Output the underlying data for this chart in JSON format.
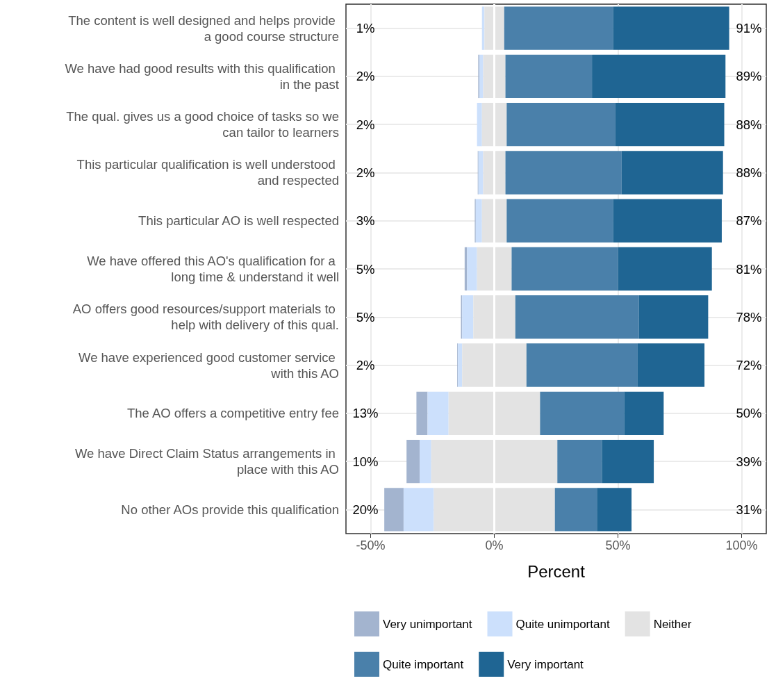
{
  "chart_data": {
    "type": "bar",
    "orientation": "horizontal",
    "xlabel": "Percent",
    "categories": [
      "The content is well designed and helps provide a good course structure",
      "We have had good results with this qualification in the past",
      "The qual. gives us a good choice of tasks so we can tailor to learners",
      "This particular qualification is well understood and respected",
      "This particular AO is well respected",
      "We have offered this AO's qualification for a long time & understand it well",
      "AO offers good resources/support materials to help with delivery of this qual.",
      "We have experienced good customer service with this AO",
      "The AO offers a competitive entry fee",
      "We have Direct Claim Status arrangements in place with this AO",
      "No other AOs provide this qualification"
    ],
    "series": [
      {
        "name": "Very unimportant",
        "color": "#a3b4cf",
        "values": [
          null,
          0.5,
          null,
          0.3,
          0.4,
          1,
          0.5,
          0.3,
          4.5,
          5.3,
          7.8
        ],
        "base": [
          null,
          -6.5,
          null,
          -6.7,
          -7.9,
          -12,
          -13.5,
          -15,
          -31.5,
          -35.5,
          -44.5
        ]
      },
      {
        "name": "Quite unimportant",
        "color": "#cce0fc",
        "values": [
          1,
          1.5,
          2,
          1.9,
          2.5,
          4,
          4.5,
          1.7,
          8.5,
          4.7,
          12.2
        ],
        "base": [
          -5,
          -6,
          -7,
          -6.4,
          -7.5,
          -11,
          -13,
          -14.7,
          -27,
          -30.2,
          -36.7
        ]
      },
      {
        "name": "Neither",
        "color": "#e3e3e3",
        "values": [
          8,
          9,
          10,
          9,
          10,
          14,
          17,
          26,
          37,
          51,
          49
        ],
        "base": [
          -4,
          -4.5,
          -5,
          -4.5,
          -5,
          -7,
          -8.5,
          -13,
          -18.5,
          -25.5,
          -24.5
        ]
      },
      {
        "name": "Quite important",
        "color": "#4a80aa",
        "values": [
          44,
          35,
          44,
          47,
          43,
          43,
          50,
          45,
          34,
          18,
          17
        ],
        "base": [
          4,
          4.5,
          5,
          4.5,
          5,
          7,
          8.5,
          13,
          18.5,
          25.5,
          24.5
        ]
      },
      {
        "name": "Very important",
        "color": "#1f6593",
        "values": [
          47,
          54,
          44,
          41,
          44,
          38,
          28,
          27,
          16,
          21,
          14
        ],
        "base": [
          48,
          39.5,
          49,
          51.5,
          48,
          50,
          58.5,
          58,
          52.5,
          43.5,
          41.5
        ]
      }
    ],
    "annotations": [
      "1%",
      "2%",
      "2%",
      "2%",
      "3%",
      "5%",
      "5%",
      "2%",
      "13%",
      "10%",
      "20%",
      "91%",
      "89%",
      "88%",
      "88%",
      "87%",
      "81%",
      "78%",
      "72%",
      "50%",
      "39%",
      "31%"
    ],
    "xlim": [
      -60,
      110
    ],
    "xticks": [
      {
        "value": -50,
        "label": "-50%"
      },
      {
        "value": 0,
        "label": "0%"
      },
      {
        "value": 50,
        "label": "50%"
      },
      {
        "value": 100,
        "label": "100%"
      }
    ],
    "grid": true,
    "legend": "bottom"
  }
}
